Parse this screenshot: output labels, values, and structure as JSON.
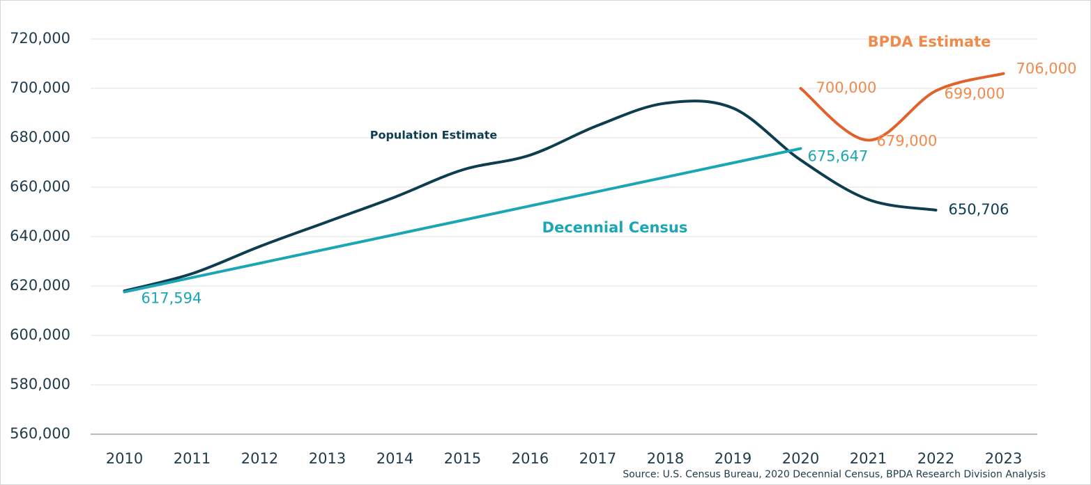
{
  "chart_data": {
    "type": "line",
    "source": "Source: U.S. Census Bureau, 2020 Decennial Census, BPDA Research Division Analysis",
    "series": [
      {
        "name": "Population Estimate",
        "color": "#0e3d50",
        "x": [
          2010,
          2011,
          2012,
          2013,
          2014,
          2015,
          2016,
          2017,
          2018,
          2019,
          2020,
          2021,
          2022
        ],
        "values": [
          618000,
          625000,
          636000,
          646000,
          656000,
          667000,
          673000,
          685000,
          694000,
          692000,
          671000,
          655000,
          650706
        ],
        "value_labels": [
          null,
          null,
          null,
          null,
          null,
          null,
          null,
          null,
          null,
          null,
          null,
          null,
          "650,706"
        ]
      },
      {
        "name": "Decennial Census",
        "color": "#1ba6b5",
        "x": [
          2010,
          2020
        ],
        "values": [
          617594,
          675647
        ],
        "value_labels": [
          "617,594",
          "675,647"
        ]
      },
      {
        "name": "BPDA Estimate",
        "color": "#e0622a",
        "label_color": "#ef8a4c",
        "x": [
          2020,
          2021,
          2022,
          2023
        ],
        "values": [
          700000,
          679000,
          699000,
          706000
        ],
        "value_labels": [
          "700,000",
          "679,000",
          "699,000",
          "706,000"
        ]
      }
    ],
    "xlim": [
      2009.5,
      2023.5
    ],
    "xticks": [
      2010,
      2011,
      2012,
      2013,
      2014,
      2015,
      2016,
      2017,
      2018,
      2019,
      2020,
      2021,
      2022,
      2023
    ],
    "ylim": [
      560000,
      720000
    ],
    "yticks": [
      {
        "value": 560000,
        "label": "560,000"
      },
      {
        "value": 580000,
        "label": "580,000"
      },
      {
        "value": 600000,
        "label": "600,000"
      },
      {
        "value": 620000,
        "label": "620,000"
      },
      {
        "value": 640000,
        "label": "640,000"
      },
      {
        "value": 660000,
        "label": "660,000"
      },
      {
        "value": 680000,
        "label": "680,000"
      },
      {
        "value": 700000,
        "label": "700,000"
      },
      {
        "value": 720000,
        "label": "720,000"
      }
    ],
    "grid": true
  }
}
